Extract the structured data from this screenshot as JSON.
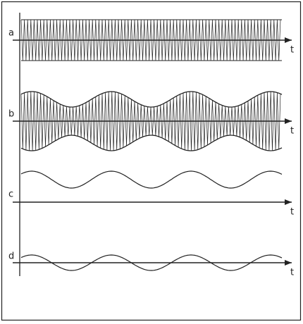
{
  "panels": [
    {
      "label": "a",
      "axis_label": "t"
    },
    {
      "label": "b",
      "axis_label": "t"
    },
    {
      "label": "c",
      "axis_label": "t"
    },
    {
      "label": "d",
      "axis_label": "t"
    }
  ]
}
